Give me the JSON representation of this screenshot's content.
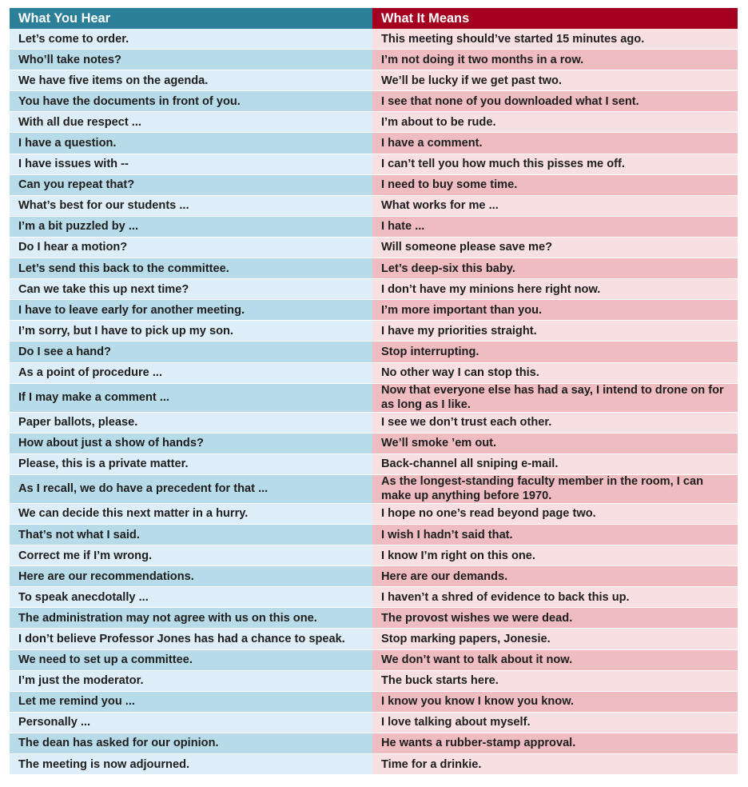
{
  "header": {
    "left": "What You Hear",
    "right": "What It Means"
  },
  "rows": [
    {
      "hear": "Let’s come to order.",
      "means": "This meeting should’ve started 15 minutes ago."
    },
    {
      "hear": "Who’ll take notes?",
      "means": "I’m not doing it two months in a row."
    },
    {
      "hear": "We have five items on the agenda.",
      "means": "We’ll be lucky if we get past two."
    },
    {
      "hear": "You have the documents in front of you.",
      "means": "I see that none of you downloaded what I sent."
    },
    {
      "hear": "With all due respect ...",
      "means": "I’m about to be rude."
    },
    {
      "hear": "I have a question.",
      "means": "I have a comment."
    },
    {
      "hear": "I have issues with --",
      "means": "I can’t tell you how much this pisses me off."
    },
    {
      "hear": "Can you repeat that?",
      "means": "I need to buy some time."
    },
    {
      "hear": "What’s best for our students ...",
      "means": "What works for me ..."
    },
    {
      "hear": "I’m a bit puzzled by ...",
      "means": "I hate ..."
    },
    {
      "hear": "Do I hear a motion?",
      "means": "Will someone please save me?"
    },
    {
      "hear": "Let’s send this back to the committee.",
      "means": "Let’s deep-six this baby."
    },
    {
      "hear": "Can we take this up next time?",
      "means": "I don’t have my minions here right now."
    },
    {
      "hear": "I have to leave early for another meeting.",
      "means": "I’m more important than you."
    },
    {
      "hear": "I’m sorry, but I have to pick up my son.",
      "means": "I have my priorities straight."
    },
    {
      "hear": "Do I see a hand?",
      "means": "Stop interrupting."
    },
    {
      "hear": "As a point of procedure ...",
      "means": "No other way I can stop this."
    },
    {
      "hear": "If I may make a comment ...",
      "means": "Now that everyone else has had a say, I intend to drone on for as long as I like."
    },
    {
      "hear": "Paper ballots, please.",
      "means": "I see we don’t trust each other."
    },
    {
      "hear": "How about just a show of hands?",
      "means": "We’ll smoke ’em out."
    },
    {
      "hear": "Please, this is a private matter.",
      "means": "Back-channel all sniping e-mail."
    },
    {
      "hear": "As I recall, we do have a precedent for that ...",
      "means": "As the longest-standing faculty member in the room, I can make up anything before 1970."
    },
    {
      "hear": "We can decide this next matter in a hurry.",
      "means": "I hope no one’s read beyond page two."
    },
    {
      "hear": "That’s not what I said.",
      "means": "I wish I hadn’t said that."
    },
    {
      "hear": "Correct me if I’m wrong.",
      "means": "I know I’m right on this one."
    },
    {
      "hear": "Here are our recommendations.",
      "means": "Here are our demands."
    },
    {
      "hear": "To speak anecdotally ...",
      "means": "I haven’t a shred of evidence to back this up."
    },
    {
      "hear": "The administration may not agree with us on this one.",
      "means": "The provost wishes we were dead."
    },
    {
      "hear": "I don’t believe Professor Jones has had a chance to speak.",
      "means": "Stop marking papers, Jonesie."
    },
    {
      "hear": "We need to set up a committee.",
      "means": "We don’t want to talk about it now."
    },
    {
      "hear": "I’m just the moderator.",
      "means": "The buck starts here."
    },
    {
      "hear": "Let me remind you ...",
      "means": "I know you know I know you know."
    },
    {
      "hear": "Personally ...",
      "means": "I love talking about myself."
    },
    {
      "hear": "The dean has asked for our opinion.",
      "means": "He wants a rubber-stamp approval."
    },
    {
      "hear": "The meeting is now adjourned.",
      "means": "Time for a drinkie."
    }
  ]
}
